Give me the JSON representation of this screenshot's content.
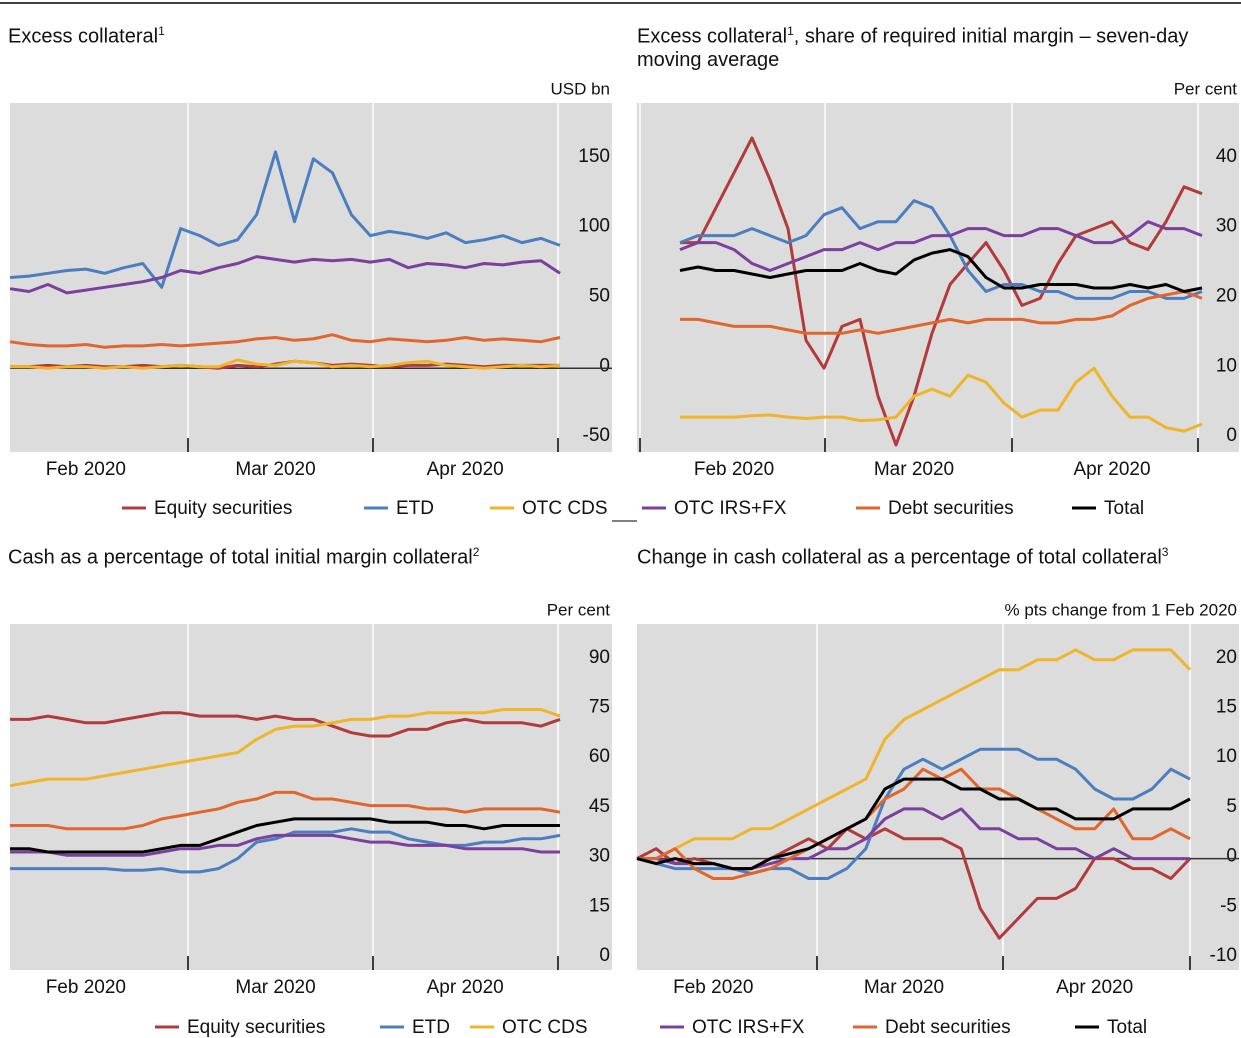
{
  "chart_data": [
    {
      "type": "line",
      "title": "Excess collateral",
      "title_note": "1",
      "y_unit": "USD bn",
      "categories": [
        null,
        null,
        null,
        null,
        "Feb 2020",
        null,
        null,
        null,
        null,
        null,
        null,
        null,
        null,
        null,
        "Mar 2020",
        null,
        null,
        null,
        null,
        null,
        null,
        null,
        null,
        null,
        "Apr 2020",
        null,
        null,
        null,
        null,
        null
      ],
      "ylim": [
        -60,
        190
      ],
      "yticks": [
        -50,
        0,
        50,
        100,
        150
      ],
      "zero_line": true,
      "series": [
        {
          "color": "#b23a3a",
          "values": [
            1,
            1,
            2,
            1,
            2,
            1,
            1,
            2,
            1,
            2,
            1,
            0,
            2,
            1,
            3,
            5,
            4,
            2,
            3,
            2,
            1,
            2,
            2,
            3,
            2,
            1,
            2,
            2,
            2,
            2
          ]
        },
        {
          "color": "#4a7ebf",
          "values": [
            65,
            66,
            68,
            70,
            71,
            68,
            72,
            75,
            58,
            100,
            95,
            88,
            92,
            110,
            155,
            105,
            150,
            140,
            110,
            95,
            98,
            96,
            93,
            97,
            90,
            92,
            95,
            90,
            93,
            88
          ]
        },
        {
          "color": "#f0b429",
          "values": [
            1,
            1,
            0,
            1,
            1,
            0,
            1,
            0,
            1,
            2,
            1,
            1,
            6,
            3,
            2,
            5,
            4,
            1,
            2,
            1,
            2,
            4,
            5,
            2,
            1,
            0,
            1,
            2,
            1,
            2
          ]
        },
        {
          "color": "#7b3f9e",
          "values": [
            57,
            55,
            60,
            54,
            56,
            58,
            60,
            62,
            65,
            70,
            68,
            72,
            75,
            80,
            78,
            76,
            78,
            77,
            78,
            76,
            78,
            72,
            75,
            74,
            72,
            75,
            74,
            76,
            77,
            68
          ]
        },
        {
          "color": "#e0662c",
          "values": [
            19,
            17,
            16,
            16,
            17,
            15,
            16,
            16,
            17,
            16,
            17,
            18,
            19,
            21,
            22,
            20,
            21,
            24,
            20,
            19,
            21,
            20,
            19,
            20,
            22,
            20,
            21,
            20,
            19,
            22
          ]
        }
      ]
    },
    {
      "type": "line",
      "title": "Excess collateral",
      "title_note": "1",
      "title_cont": ", share of required initial margin – seven-day moving average",
      "y_unit": "Per cent",
      "categories": [
        null,
        null,
        null,
        "Feb 2020",
        null,
        null,
        null,
        null,
        null,
        null,
        null,
        null,
        null,
        "Mar 2020",
        null,
        null,
        null,
        null,
        null,
        null,
        null,
        null,
        null,
        null,
        "Apr 2020",
        null,
        null,
        null,
        null,
        null
      ],
      "ylim": [
        -2,
        48
      ],
      "yticks": [
        0,
        10,
        20,
        30,
        40
      ],
      "zero_line": false,
      "series": [
        {
          "name": "Equity securities",
          "color": "#b23a3a",
          "values": [
            28,
            28,
            33,
            38,
            43,
            37,
            30,
            14,
            10,
            16,
            17,
            6,
            -1,
            6,
            15,
            22,
            25,
            28,
            24,
            19,
            20,
            25,
            29,
            30,
            31,
            28,
            27,
            31,
            36,
            35
          ]
        },
        {
          "name": "ETD",
          "color": "#4a7ebf",
          "values": [
            28,
            29,
            29,
            29,
            30,
            29,
            28,
            29,
            32,
            33,
            30,
            31,
            31,
            34,
            33,
            29,
            24,
            21,
            22,
            22,
            21,
            21,
            20,
            20,
            20,
            21,
            21,
            20,
            20,
            21
          ]
        },
        {
          "name": "OTC CDS",
          "color": "#f0b429",
          "values": [
            3,
            3,
            3,
            3,
            3.2,
            3.3,
            3,
            2.8,
            3,
            3,
            2.5,
            2.6,
            3,
            6,
            7,
            6,
            9,
            8,
            5,
            3,
            4,
            4,
            8,
            10,
            6,
            3,
            3,
            1.5,
            1,
            2
          ]
        },
        {
          "name": "OTC IRS+FX",
          "color": "#7b3f9e",
          "values": [
            27,
            28,
            28,
            27,
            25,
            24,
            25,
            26,
            27,
            27,
            28,
            27,
            28,
            28,
            29,
            29,
            30,
            30,
            29,
            29,
            30,
            30,
            29,
            28,
            28,
            29,
            31,
            30,
            30,
            29
          ]
        },
        {
          "name": "Debt securities",
          "color": "#e0662c",
          "values": [
            17,
            17,
            16.5,
            16,
            16,
            16,
            15.5,
            15,
            15,
            15,
            15.5,
            15,
            15.5,
            16,
            16.5,
            17,
            16.5,
            17,
            17,
            17,
            16.5,
            16.5,
            17,
            17,
            17.5,
            19,
            20,
            20.5,
            21,
            20
          ]
        },
        {
          "name": "Total",
          "color": "#000000",
          "values": [
            24,
            24.5,
            24,
            24,
            23.5,
            23,
            23.5,
            24,
            24,
            24,
            25,
            24,
            23.5,
            25.5,
            26.5,
            27,
            26,
            23,
            21.5,
            21.5,
            22,
            22,
            22,
            21.5,
            21.5,
            22,
            21.5,
            22,
            21,
            21.5
          ]
        }
      ]
    },
    {
      "type": "line",
      "title": "Cash as a percentage of total initial margin collateral",
      "title_note": "2",
      "y_unit": "Per cent",
      "categories": [
        null,
        null,
        null,
        null,
        "Feb 2020",
        null,
        null,
        null,
        null,
        null,
        null,
        null,
        null,
        null,
        "Mar 2020",
        null,
        null,
        null,
        null,
        null,
        null,
        null,
        null,
        null,
        "Apr 2020",
        null,
        null,
        null,
        null,
        null
      ],
      "ylim": [
        -3.6,
        100.8
      ],
      "yticks": [
        0,
        15,
        30,
        45,
        60,
        75,
        90
      ],
      "zero_line": false,
      "series": [
        {
          "color": "#b23a3a",
          "values": [
            72,
            72,
            73,
            72,
            71,
            71,
            72,
            73,
            74,
            74,
            73,
            73,
            73,
            72,
            73,
            72,
            72,
            70,
            68,
            67,
            67,
            69,
            69,
            71,
            72,
            71,
            71,
            71,
            70,
            72
          ]
        },
        {
          "color": "#4a7ebf",
          "values": [
            27,
            27,
            27,
            27,
            27,
            27,
            26.5,
            26.5,
            27,
            26,
            26,
            27,
            30,
            35,
            36,
            38,
            38,
            38,
            39,
            38,
            38,
            36,
            35,
            34,
            34,
            35,
            35,
            36,
            36,
            37
          ]
        },
        {
          "color": "#f0b429",
          "values": [
            52,
            53,
            54,
            54,
            54,
            55,
            56,
            57,
            58,
            59,
            60,
            61,
            62,
            66,
            69,
            70,
            70,
            71,
            72,
            72,
            73,
            73,
            74,
            74,
            74,
            74,
            75,
            75,
            75,
            73
          ]
        },
        {
          "color": "#7b3f9e",
          "values": [
            32,
            32,
            32,
            31,
            31,
            31,
            31,
            31,
            32,
            33,
            33,
            34,
            34,
            36,
            37,
            37,
            37,
            37,
            36,
            35,
            35,
            34,
            34,
            34,
            33,
            33,
            33,
            33,
            32,
            32
          ]
        },
        {
          "color": "#e0662c",
          "values": [
            40,
            40,
            40,
            39,
            39,
            39,
            39,
            40,
            42,
            43,
            44,
            45,
            47,
            48,
            50,
            50,
            48,
            48,
            47,
            46,
            46,
            46,
            45,
            45,
            44,
            45,
            45,
            45,
            45,
            44
          ]
        },
        {
          "color": "#000000",
          "values": [
            33,
            33,
            32,
            32,
            32,
            32,
            32,
            32,
            33,
            34,
            34,
            36,
            38,
            40,
            41,
            42,
            42,
            42,
            42,
            42,
            41,
            41,
            41,
            40,
            40,
            39,
            40,
            40,
            40,
            40
          ]
        }
      ]
    },
    {
      "type": "line",
      "title": "Change in cash collateral as a percentage of total collateral",
      "title_note": "3",
      "y_unit": "% pts change from 1 Feb 2020",
      "categories": [
        null,
        null,
        null,
        null,
        "Feb 2020",
        null,
        null,
        null,
        null,
        null,
        null,
        null,
        null,
        null,
        "Mar 2020",
        null,
        null,
        null,
        null,
        null,
        null,
        null,
        null,
        null,
        "Apr 2020",
        null,
        null,
        null,
        null,
        null
      ],
      "ylim": [
        -11.2,
        23.6
      ],
      "yticks": [
        -10,
        -5,
        0,
        5,
        10,
        15,
        20
      ],
      "zero_line": true,
      "series": [
        {
          "name": "Equity securities",
          "color": "#b23a3a",
          "values": [
            0,
            1,
            -0.5,
            0,
            -0.5,
            -1,
            -1,
            0,
            1,
            2,
            1,
            3,
            2,
            3,
            2,
            2,
            2,
            1,
            -5,
            -8,
            -6,
            -4,
            -4,
            -3,
            0,
            0,
            -1,
            -1,
            -2,
            0
          ]
        },
        {
          "name": "ETD",
          "color": "#4a7ebf",
          "values": [
            0,
            -0.5,
            -1,
            -1,
            -1,
            -1,
            -1.5,
            -1,
            -1,
            -2,
            -2,
            -1,
            1,
            6,
            9,
            10,
            9,
            10,
            11,
            11,
            11,
            10,
            10,
            9,
            7,
            6,
            6,
            7,
            9,
            8
          ]
        },
        {
          "name": "OTC CDS",
          "color": "#f0b429",
          "values": [
            0,
            0,
            1,
            2,
            2,
            2,
            3,
            3,
            4,
            5,
            6,
            7,
            8,
            12,
            14,
            15,
            16,
            17,
            18,
            19,
            19,
            20,
            20,
            21,
            20,
            20,
            21,
            21,
            21,
            19
          ]
        },
        {
          "name": "OTC IRS+FX",
          "color": "#7b3f9e",
          "values": [
            0,
            0,
            -0.5,
            -0.5,
            -0.5,
            -1,
            -1,
            -0.5,
            0,
            0,
            1,
            1,
            2,
            4,
            5,
            5,
            4,
            5,
            3,
            3,
            2,
            2,
            1,
            1,
            0,
            1,
            0,
            0,
            0,
            0
          ]
        },
        {
          "name": "Debt securities",
          "color": "#e0662c",
          "values": [
            0,
            0,
            1,
            -1,
            -2,
            -2,
            -1.5,
            -1,
            0,
            1,
            2,
            3,
            4,
            6,
            7,
            9,
            8,
            9,
            7,
            7,
            6,
            5,
            4,
            3,
            3,
            5,
            2,
            2,
            3,
            2
          ]
        },
        {
          "name": "Total",
          "color": "#000000",
          "values": [
            0,
            -0.5,
            0,
            -0.5,
            -0.5,
            -1,
            -1,
            0,
            0.5,
            1,
            2,
            3,
            4,
            7,
            8,
            8,
            8,
            7,
            7,
            6,
            6,
            5,
            5,
            4,
            4,
            4,
            5,
            5,
            5,
            6
          ]
        }
      ]
    }
  ]
}
